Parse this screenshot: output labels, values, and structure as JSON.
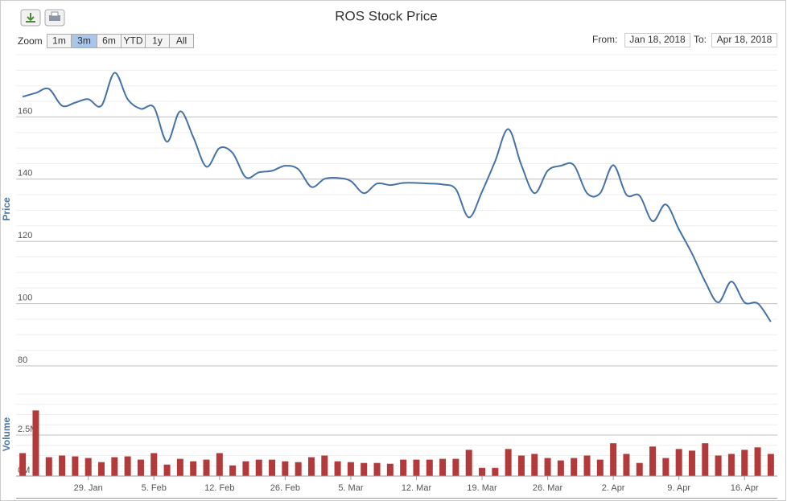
{
  "range_selector": {
    "label": "Zoom",
    "buttons": [
      "1m",
      "3m",
      "6m",
      "YTD",
      "1y",
      "All"
    ],
    "selected": 1
  },
  "date_range": {
    "from_label": "From:",
    "from": "Jan 18, 2018",
    "to_label": "To:",
    "to": "Apr 18, 2018"
  },
  "chart_data": [
    {
      "type": "line",
      "title": "ROS Stock Price",
      "y_label": "Price",
      "color": "#4572a7",
      "grid": true,
      "ylim": [
        80,
        180
      ],
      "yticks": [
        80,
        100,
        120,
        140,
        160
      ],
      "values": [
        166.5,
        167.7,
        169,
        163.6,
        164.6,
        165.7,
        163.6,
        174.2,
        165.7,
        162.6,
        163.1,
        152,
        161.8,
        153.5,
        144,
        150,
        148.4,
        140.6,
        142.2,
        142.7,
        144.3,
        143.2,
        137.5,
        140.1,
        140.4,
        139.4,
        135.5,
        138.6,
        138.1,
        138.8,
        138.8,
        138.6,
        138.3,
        136.8,
        127.7,
        136,
        145.8,
        156.1,
        144.5,
        135.5,
        142.7,
        144.3,
        144.5,
        135.5,
        135.5,
        144.5,
        135,
        134.7,
        126.5,
        131.9,
        123.9,
        116.1,
        107.1,
        100.4,
        107.1,
        100.4,
        100.1,
        94.2
      ]
    },
    {
      "type": "bar",
      "y_label": "Volume",
      "color": "#b33a3a",
      "grid": true,
      "ylim": [
        0,
        5000000
      ],
      "yticks": [
        {
          "value": 0,
          "label": "0M"
        },
        {
          "value": 2500000,
          "label": "2.5M"
        }
      ],
      "categories": [
        null,
        null,
        null,
        null,
        null,
        "29. Jan",
        null,
        null,
        null,
        null,
        "5. Feb",
        null,
        null,
        null,
        null,
        "12. Feb",
        null,
        null,
        null,
        null,
        "26. Feb",
        null,
        null,
        null,
        null,
        "5. Mar",
        null,
        null,
        null,
        null,
        "12. Mar",
        null,
        null,
        null,
        null,
        "19. Mar",
        null,
        null,
        null,
        null,
        "26. Mar",
        null,
        null,
        null,
        null,
        "2. Apr",
        null,
        null,
        null,
        null,
        "9. Apr",
        null,
        null,
        null,
        null,
        "16. Apr",
        null,
        null
      ],
      "values": [
        1400000,
        4000000,
        1150000,
        1250000,
        1200000,
        1100000,
        850000,
        1150000,
        1200000,
        1000000,
        1400000,
        700000,
        1050000,
        900000,
        1000000,
        1400000,
        650000,
        900000,
        1000000,
        1000000,
        900000,
        850000,
        1150000,
        1250000,
        900000,
        850000,
        800000,
        800000,
        750000,
        1000000,
        1000000,
        1000000,
        1050000,
        1050000,
        1600000,
        500000,
        500000,
        1650000,
        1250000,
        1350000,
        1100000,
        950000,
        1100000,
        1250000,
        1000000,
        2000000,
        1350000,
        800000,
        1800000,
        1100000,
        1650000,
        1550000,
        2000000,
        1250000,
        1350000,
        1600000,
        1750000,
        1350000
      ]
    }
  ]
}
